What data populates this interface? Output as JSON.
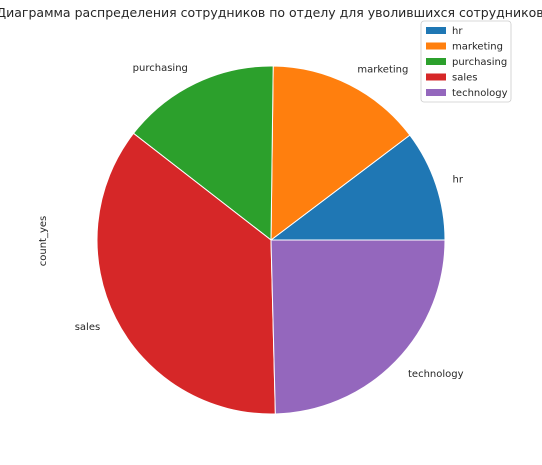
{
  "chart_data": {
    "type": "pie",
    "title": "Диаграмма распределения сотрудников по отделу для уволившихся сотрудников",
    "ylabel": "count_yes",
    "categories": [
      "hr",
      "marketing",
      "purchasing",
      "sales",
      "technology"
    ],
    "values": [
      10.3,
      14.5,
      14.7,
      35.9,
      24.6
    ],
    "colors": [
      "#1f77b4",
      "#ff7f0e",
      "#2ca02c",
      "#d62728",
      "#9467bd"
    ],
    "legend": {
      "placement": "top-right",
      "entries": [
        "hr",
        "marketing",
        "purchasing",
        "sales",
        "technology"
      ]
    }
  }
}
